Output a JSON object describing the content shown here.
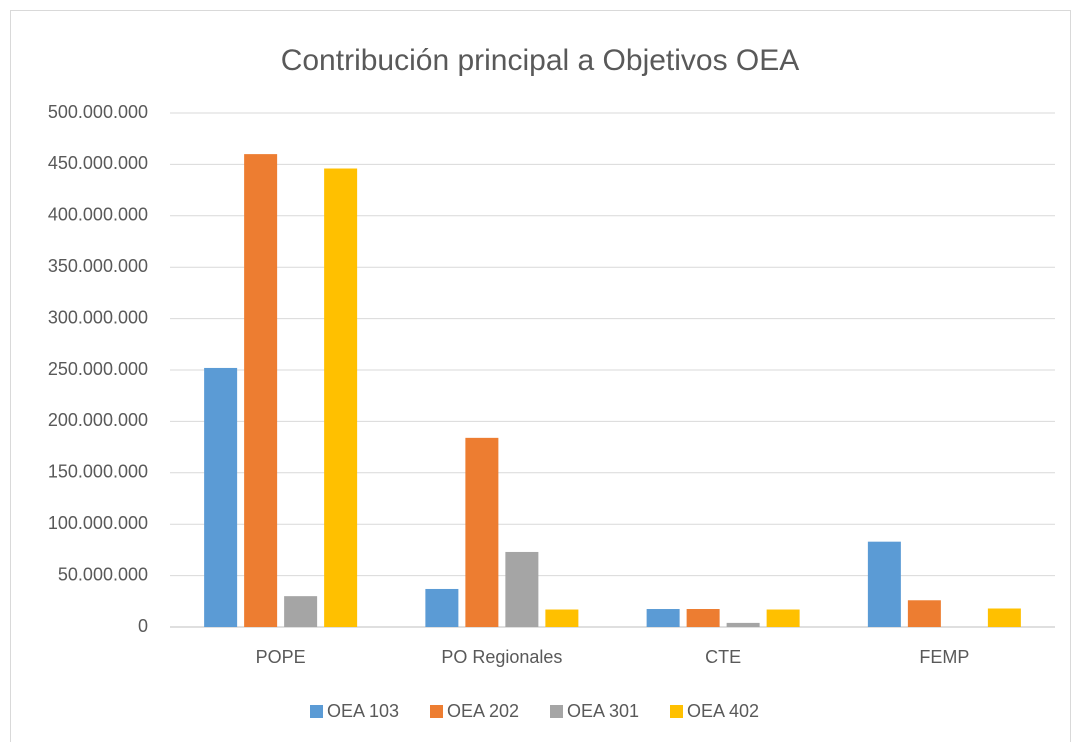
{
  "chart_data": {
    "type": "bar",
    "title": "Contribución principal a Objetivos OEA",
    "categories": [
      "POPE",
      "PO Regionales",
      "CTE",
      "FEMP"
    ],
    "series": [
      {
        "name": "OEA 103",
        "color": "#5b9bd5",
        "values": [
          252000000,
          37000000,
          17500000,
          83000000
        ]
      },
      {
        "name": "OEA 202",
        "color": "#ed7d31",
        "values": [
          460000000,
          184000000,
          17500000,
          26000000
        ]
      },
      {
        "name": "OEA 301",
        "color": "#a5a5a5",
        "values": [
          30000000,
          73000000,
          4000000,
          0
        ]
      },
      {
        "name": "OEA 402",
        "color": "#ffc000",
        "values": [
          446000000,
          17000000,
          17000000,
          18000000
        ]
      }
    ],
    "ylim": [
      0,
      500000000
    ],
    "yticks": [
      0,
      {
        "value": 50000000,
        "label": "50.000.000"
      },
      {
        "value": 100000000,
        "label": "100.000.000"
      },
      {
        "value": 150000000,
        "label": "150.000.000"
      },
      {
        "value": 200000000,
        "label": "200.000.000"
      },
      {
        "value": 250000000,
        "label": "250.000.000"
      },
      {
        "value": 300000000,
        "label": "300.000.000"
      },
      {
        "value": 350000000,
        "label": "350.000.000"
      },
      {
        "value": 400000000,
        "label": "400.000.000"
      },
      {
        "value": 450000000,
        "label": "450.000.000"
      },
      {
        "value": 500000000,
        "label": "500.000.000"
      }
    ],
    "grid": true,
    "legend": "bottom"
  }
}
